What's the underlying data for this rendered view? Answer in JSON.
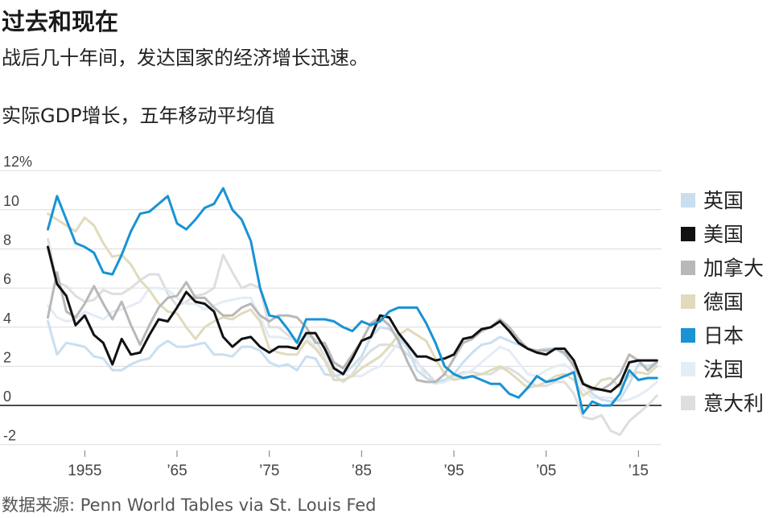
{
  "header": {
    "title": "过去和现在",
    "subtitle": "战后几十年间，发达国家的经济增长迅速。"
  },
  "source": "数据来源: Penn World Tables via St. Louis Fed",
  "chart_data": {
    "type": "line",
    "title": "实际GDP增长，五年移动平均值",
    "xlabel": "",
    "ylabel": "",
    "xlim": [
      1950,
      2017.5
    ],
    "ylim": [
      -2.3,
      12.5
    ],
    "y_ticks": [
      {
        "value": 12,
        "label": "12%"
      },
      {
        "value": 10,
        "label": "10"
      },
      {
        "value": 8,
        "label": "8"
      },
      {
        "value": 6,
        "label": "6"
      },
      {
        "value": 4,
        "label": "4"
      },
      {
        "value": 2,
        "label": "2"
      },
      {
        "value": 0,
        "label": "0"
      },
      {
        "value": -2,
        "label": "-2"
      }
    ],
    "x_ticks": [
      {
        "value": 1955,
        "label": "1955"
      },
      {
        "value": 1965,
        "label": "’65"
      },
      {
        "value": 1975,
        "label": "’75"
      },
      {
        "value": 1985,
        "label": "’85"
      },
      {
        "value": 1995,
        "label": "’95"
      },
      {
        "value": 2005,
        "label": "’05"
      },
      {
        "value": 2015,
        "label": "’15"
      }
    ],
    "grid": true,
    "legend_position": "right",
    "x": [
      1951,
      1952,
      1953,
      1954,
      1955,
      1956,
      1957,
      1958,
      1959,
      1960,
      1961,
      1962,
      1963,
      1964,
      1965,
      1966,
      1967,
      1968,
      1969,
      1970,
      1971,
      1972,
      1973,
      1974,
      1975,
      1976,
      1977,
      1978,
      1979,
      1980,
      1981,
      1982,
      1983,
      1984,
      1985,
      1986,
      1987,
      1988,
      1989,
      1990,
      1991,
      1992,
      1993,
      1994,
      1995,
      1996,
      1997,
      1998,
      1999,
      2000,
      2001,
      2002,
      2003,
      2004,
      2005,
      2006,
      2007,
      2008,
      2009,
      2010,
      2011,
      2012,
      2013,
      2014,
      2015,
      2016,
      2017
    ],
    "series": [
      {
        "name": "英国",
        "color": "#c9dff0",
        "values": [
          4.3,
          2.6,
          3.2,
          3.1,
          3.0,
          2.5,
          2.4,
          1.8,
          1.8,
          2.1,
          2.3,
          2.4,
          3.0,
          3.3,
          3.0,
          3.0,
          3.1,
          3.2,
          2.6,
          2.6,
          2.5,
          3.0,
          3.0,
          2.8,
          2.2,
          2.0,
          2.1,
          1.8,
          2.5,
          2.4,
          1.6,
          1.5,
          1.6,
          2.0,
          2.5,
          3.5,
          4.0,
          3.9,
          3.5,
          2.9,
          1.8,
          1.4,
          1.2,
          1.3,
          1.6,
          2.2,
          2.7,
          3.1,
          3.2,
          3.5,
          3.3,
          3.1,
          2.9,
          2.8,
          2.9,
          2.9,
          2.6,
          2.1,
          1.2,
          0.6,
          0.3,
          0.2,
          0.3,
          1.1,
          2.1,
          2.0,
          2.2
        ]
      },
      {
        "name": "美国",
        "color": "#111111",
        "values": [
          8.1,
          6.2,
          5.6,
          4.1,
          4.6,
          3.6,
          3.2,
          2.1,
          3.4,
          2.6,
          2.7,
          3.6,
          4.4,
          4.3,
          5.0,
          5.8,
          5.3,
          5.2,
          4.8,
          3.5,
          3.0,
          3.4,
          3.5,
          3.0,
          2.7,
          3.0,
          3.0,
          2.9,
          3.7,
          3.7,
          2.9,
          1.9,
          1.6,
          2.4,
          3.3,
          3.5,
          4.6,
          4.5,
          3.7,
          3.1,
          2.5,
          2.5,
          2.3,
          2.4,
          2.6,
          3.4,
          3.5,
          3.9,
          4.0,
          4.3,
          3.8,
          3.2,
          2.9,
          2.7,
          2.6,
          2.9,
          2.9,
          2.3,
          1.1,
          0.9,
          0.8,
          0.7,
          1.1,
          2.2,
          2.3,
          2.3,
          2.3
        ]
      },
      {
        "name": "加拿大",
        "color": "#b8b8b8",
        "values": [
          4.5,
          6.8,
          4.8,
          4.5,
          5.2,
          6.1,
          5.2,
          4.4,
          5.3,
          4.1,
          3.1,
          4.1,
          5.0,
          5.5,
          5.6,
          6.3,
          5.5,
          5.5,
          5.0,
          4.6,
          4.6,
          5.0,
          5.2,
          4.6,
          4.3,
          4.6,
          4.6,
          4.5,
          4.0,
          3.2,
          3.2,
          2.2,
          1.9,
          2.6,
          3.3,
          4.2,
          4.5,
          4.1,
          3.3,
          2.2,
          1.3,
          1.2,
          1.2,
          1.6,
          2.4,
          3.2,
          3.4,
          3.8,
          4.0,
          4.4,
          4.0,
          3.4,
          2.9,
          2.8,
          2.8,
          2.9,
          2.7,
          2.0,
          1.1,
          0.8,
          0.8,
          1.1,
          1.6,
          2.6,
          2.3,
          1.8,
          2.2
        ]
      },
      {
        "name": "德国",
        "color": "#e0dbbc",
        "values": [
          9.8,
          9.5,
          9.2,
          8.9,
          9.6,
          9.2,
          8.3,
          7.6,
          7.7,
          7.2,
          6.4,
          5.9,
          5.2,
          4.8,
          4.7,
          4.0,
          3.4,
          4.0,
          4.3,
          4.5,
          4.4,
          4.7,
          4.9,
          4.3,
          2.9,
          2.7,
          2.6,
          2.6,
          3.3,
          2.9,
          2.3,
          1.3,
          1.3,
          1.5,
          1.9,
          2.2,
          2.5,
          3.0,
          3.6,
          3.9,
          3.6,
          3.3,
          2.4,
          1.6,
          1.3,
          1.4,
          1.5,
          1.6,
          1.8,
          2.0,
          1.7,
          1.3,
          0.9,
          1.0,
          1.2,
          1.5,
          1.6,
          1.3,
          0.5,
          0.8,
          1.3,
          1.4,
          0.9,
          1.5,
          1.7,
          1.6,
          2.0
        ]
      },
      {
        "name": "日本",
        "color": "#1893d4",
        "values": [
          9.0,
          10.7,
          9.5,
          8.3,
          8.1,
          7.8,
          6.8,
          6.7,
          7.7,
          8.9,
          9.8,
          9.9,
          10.3,
          10.7,
          9.3,
          9.0,
          9.5,
          10.1,
          10.3,
          11.1,
          10.0,
          9.5,
          8.4,
          6.0,
          4.6,
          4.5,
          3.9,
          3.2,
          4.4,
          4.4,
          4.4,
          4.3,
          4.0,
          3.8,
          4.3,
          4.1,
          4.3,
          4.8,
          5.0,
          5.0,
          5.0,
          4.2,
          3.2,
          2.0,
          1.6,
          1.4,
          1.5,
          1.3,
          1.1,
          1.1,
          0.6,
          0.4,
          0.9,
          1.5,
          1.2,
          1.3,
          1.5,
          1.7,
          -0.4,
          0.2,
          0.0,
          0.0,
          0.6,
          1.8,
          1.3,
          1.4,
          1.4
        ]
      },
      {
        "name": "法国",
        "color": "#e4ecf6",
        "values": [
          5.1,
          4.5,
          4.3,
          4.4,
          4.8,
          4.6,
          4.4,
          4.8,
          4.9,
          5.1,
          5.3,
          6.0,
          6.0,
          5.9,
          5.5,
          5.2,
          5.2,
          4.9,
          5.1,
          5.3,
          5.4,
          5.5,
          5.5,
          4.5,
          3.5,
          3.5,
          3.4,
          3.4,
          3.5,
          3.0,
          2.4,
          2.0,
          1.6,
          1.5,
          1.5,
          1.8,
          2.0,
          2.6,
          3.2,
          3.2,
          2.3,
          1.4,
          1.1,
          1.2,
          1.4,
          1.6,
          1.8,
          2.2,
          2.6,
          3.0,
          2.8,
          2.2,
          1.6,
          1.5,
          1.8,
          2.0,
          2.1,
          1.7,
          0.8,
          0.4,
          0.4,
          0.4,
          0.2,
          0.3,
          0.5,
          0.8,
          1.2
        ]
      },
      {
        "name": "意大利",
        "color": "#dedede",
        "values": [
          8.5,
          6.3,
          6.1,
          5.6,
          5.3,
          5.4,
          5.9,
          5.7,
          5.7,
          6.0,
          6.4,
          6.7,
          6.7,
          5.7,
          5.1,
          5.3,
          5.6,
          5.7,
          6.0,
          7.7,
          6.8,
          6.0,
          6.2,
          6.0,
          4.0,
          4.0,
          3.6,
          3.2,
          3.6,
          3.4,
          2.5,
          1.6,
          1.2,
          1.6,
          2.3,
          2.8,
          3.1,
          3.1,
          3.0,
          2.6,
          2.2,
          1.7,
          1.2,
          1.3,
          1.5,
          1.7,
          1.7,
          1.6,
          1.6,
          1.9,
          1.9,
          1.6,
          1.2,
          1.0,
          1.0,
          1.2,
          1.2,
          0.6,
          -0.6,
          -0.7,
          -0.5,
          -1.3,
          -1.5,
          -0.8,
          -0.4,
          0.0,
          0.5
        ]
      }
    ]
  }
}
